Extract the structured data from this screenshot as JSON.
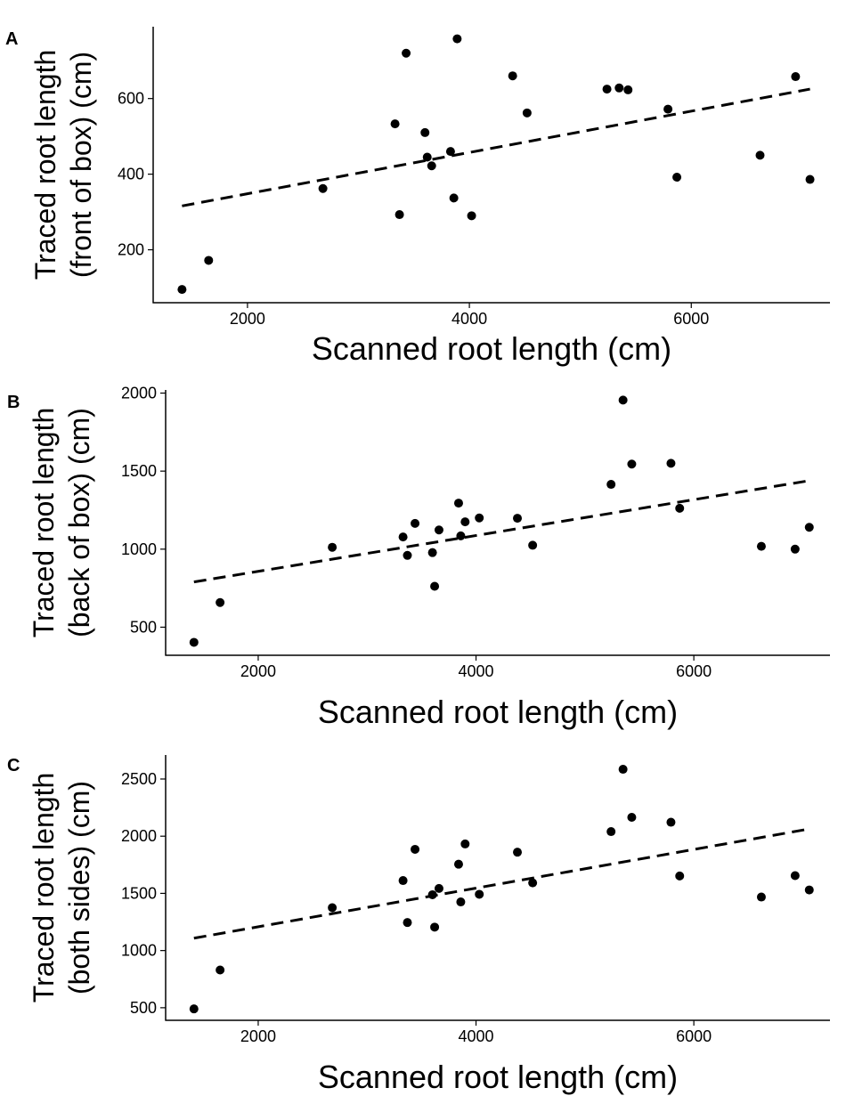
{
  "colors": {
    "points": "#000000",
    "trend": "#000000",
    "axis": "#000000",
    "tick_label": "#333333"
  },
  "chart_data": [
    {
      "type": "scatter",
      "panel": "A",
      "xlabel": "Scanned root length (cm)",
      "ylabel_lines": [
        "Traced root length",
        "(front of box) (cm)"
      ],
      "xlim": [
        1150,
        7250
      ],
      "ylim": [
        60,
        790
      ],
      "xticks": [
        2000,
        4000,
        6000
      ],
      "yticks": [
        200,
        400,
        600
      ],
      "x": [
        1410,
        1650,
        2680,
        3330,
        3370,
        3430,
        3600,
        3620,
        3660,
        3830,
        3860,
        3890,
        4020,
        4390,
        4520,
        5240,
        5350,
        5430,
        5790,
        5870,
        6620,
        6940,
        7070
      ],
      "y": [
        95,
        172,
        362,
        533,
        293,
        720,
        510,
        445,
        422,
        460,
        337,
        758,
        290,
        660,
        562,
        625,
        628,
        623,
        572,
        392,
        450,
        658,
        386
      ],
      "trend_line": {
        "x": [
          1410,
          7070
        ],
        "y": [
          316,
          625
        ],
        "style": "dashed"
      },
      "grid": false,
      "legend": "none"
    },
    {
      "type": "scatter",
      "panel": "B",
      "xlabel": "Scanned root length (cm)",
      "ylabel_lines": [
        "Traced root length",
        "(back of box) (cm)"
      ],
      "xlim": [
        1150,
        7250
      ],
      "ylim": [
        320,
        2020
      ],
      "xticks": [
        2000,
        4000,
        6000
      ],
      "yticks": [
        500,
        1000,
        1500,
        2000
      ],
      "x": [
        1410,
        1650,
        2680,
        3330,
        3370,
        3440,
        3600,
        3620,
        3660,
        3840,
        3860,
        3900,
        4030,
        4380,
        4520,
        5240,
        5350,
        5430,
        5790,
        5870,
        6620,
        6930,
        7060
      ],
      "y": [
        403,
        658,
        1012,
        1078,
        960,
        1165,
        978,
        762,
        1123,
        1295,
        1085,
        1175,
        1200,
        1198,
        1025,
        1415,
        1955,
        1545,
        1550,
        1262,
        1018,
        1000,
        1140
      ],
      "trend_line": {
        "x": [
          1410,
          7070
        ],
        "y": [
          790,
          1440
        ],
        "style": "dashed"
      },
      "grid": false,
      "legend": "none"
    },
    {
      "type": "scatter",
      "panel": "C",
      "xlabel": "Scanned root length (cm)",
      "ylabel_lines": [
        "Traced root length",
        "(both sides) (cm)"
      ],
      "xlim": [
        1150,
        7250
      ],
      "ylim": [
        390,
        2710
      ],
      "xticks": [
        2000,
        4000,
        6000
      ],
      "yticks": [
        500,
        1000,
        1500,
        2000,
        2500
      ],
      "x": [
        1410,
        1650,
        2680,
        3330,
        3370,
        3440,
        3600,
        3620,
        3660,
        3840,
        3860,
        3900,
        4030,
        4380,
        4520,
        5240,
        5350,
        5430,
        5790,
        5870,
        6620,
        6930,
        7060
      ],
      "y": [
        490,
        830,
        1375,
        1612,
        1245,
        1885,
        1488,
        1205,
        1543,
        1755,
        1425,
        1932,
        1492,
        1860,
        1592,
        2040,
        2585,
        2165,
        2122,
        1652,
        1468,
        1655,
        1530
      ],
      "trend_line": {
        "x": [
          1410,
          7070
        ],
        "y": [
          1108,
          2065
        ],
        "style": "dashed"
      },
      "grid": false,
      "legend": "none"
    }
  ]
}
